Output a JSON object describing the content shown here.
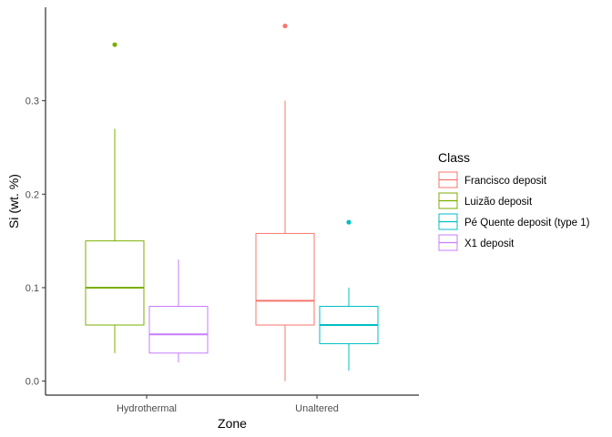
{
  "chart_data": {
    "type": "boxplot",
    "xlabel": "Zone",
    "ylabel": "Si (wt. %)",
    "categories": [
      "Hydrothermal",
      "Unaltered"
    ],
    "ylim": [
      -0.015,
      0.4
    ],
    "yticks": [
      0.0,
      0.1,
      0.2,
      0.3
    ],
    "ytick_labels": [
      "0.0",
      "0.1",
      "0.2",
      "0.3"
    ],
    "grid": false,
    "legend": {
      "title": "Class",
      "position": "right",
      "entries": [
        {
          "label": "Francisco deposit",
          "color": "#F8766D"
        },
        {
          "label": "Luizão deposit",
          "color": "#7CAE00"
        },
        {
          "label": "Pé Quente deposit (type 1)",
          "color": "#00BFC4"
        },
        {
          "label": "X1 deposit",
          "color": "#C77CFF"
        }
      ]
    },
    "series": [
      {
        "name": "Luizão deposit",
        "color": "#7CAE00",
        "category": "Hydrothermal",
        "slot": 0,
        "whisker_low": 0.03,
        "q1": 0.06,
        "median": 0.1,
        "q3": 0.15,
        "whisker_high": 0.27,
        "outliers": [
          0.36
        ]
      },
      {
        "name": "X1 deposit",
        "color": "#C77CFF",
        "category": "Hydrothermal",
        "slot": 1,
        "whisker_low": 0.02,
        "q1": 0.03,
        "median": 0.05,
        "q3": 0.08,
        "whisker_high": 0.13,
        "outliers": []
      },
      {
        "name": "Francisco deposit",
        "color": "#F8766D",
        "category": "Unaltered",
        "slot": 0,
        "whisker_low": 0.0,
        "q1": 0.06,
        "median": 0.086,
        "q3": 0.158,
        "whisker_high": 0.3,
        "outliers": [
          0.38
        ]
      },
      {
        "name": "Pé Quente deposit (type 1)",
        "color": "#00BFC4",
        "category": "Unaltered",
        "slot": 1,
        "whisker_low": 0.011,
        "q1": 0.04,
        "median": 0.06,
        "q3": 0.08,
        "whisker_high": 0.1,
        "outliers": [
          0.17
        ]
      }
    ]
  }
}
